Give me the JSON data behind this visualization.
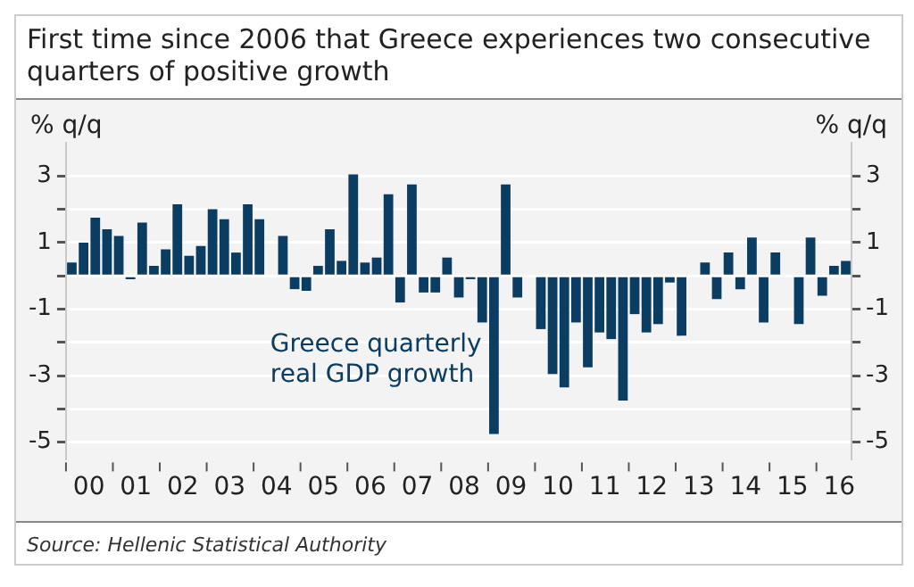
{
  "chart_data": {
    "type": "bar",
    "title": "First time since 2006 that Greece experiences two consecutive quarters of positive growth",
    "ylabel": "% q/q",
    "y2label": "% q/q",
    "categories": [
      null,
      "00",
      null,
      null,
      null,
      "01",
      null,
      null,
      null,
      "02",
      null,
      null,
      null,
      "03",
      null,
      null,
      null,
      "04",
      null,
      null,
      null,
      "05",
      null,
      null,
      null,
      "06",
      null,
      null,
      null,
      "07",
      null,
      null,
      null,
      "08",
      null,
      null,
      null,
      "09",
      null,
      null,
      null,
      "10",
      null,
      null,
      null,
      "11",
      null,
      null,
      null,
      "12",
      null,
      null,
      null,
      "13",
      null,
      null,
      null,
      "14",
      null,
      null,
      null,
      "15",
      null,
      null,
      null,
      "16",
      null
    ],
    "series": [
      {
        "name": "Greece quarterly real GDP growth",
        "color": "#0b3d63",
        "values": [
          0.4,
          1.0,
          1.75,
          1.4,
          1.2,
          -0.1,
          1.6,
          0.3,
          0.8,
          2.15,
          0.6,
          0.9,
          2.0,
          1.7,
          0.7,
          2.15,
          1.7,
          0,
          1.2,
          -0.4,
          -0.45,
          0.3,
          1.4,
          0.45,
          3.05,
          0.4,
          0.55,
          2.45,
          -0.8,
          2.75,
          -0.5,
          -0.5,
          0.55,
          -0.65,
          -0.1,
          -1.4,
          -4.75,
          2.75,
          -0.65,
          0,
          -1.6,
          -2.95,
          -3.35,
          -1.4,
          -2.75,
          -1.7,
          -1.9,
          -3.75,
          -1.15,
          -1.7,
          -1.45,
          -0.2,
          -1.8,
          0,
          0.4,
          -0.7,
          0.7,
          -0.4,
          1.15,
          -1.4,
          0.7,
          0,
          -1.45,
          1.15,
          -0.6,
          0.3,
          0.45
        ]
      }
    ],
    "ylim": [
      -5.5,
      4
    ],
    "yticks": [
      3,
      {
        "value": 2,
        "label": null
      },
      1,
      {
        "value": 0,
        "label": null
      },
      -1,
      {
        "value": -2,
        "label": null
      },
      -3,
      {
        "value": -4,
        "label": null
      },
      -5
    ],
    "y2lim": [
      -5.5,
      4
    ],
    "y2ticks": [
      3,
      {
        "value": 2,
        "label": null
      },
      1,
      {
        "value": 0,
        "label": null
      },
      -1,
      {
        "value": -2,
        "label": null
      },
      -3,
      {
        "value": -4,
        "label": null
      },
      -5
    ],
    "grid": "y",
    "legend": false,
    "annotations": [
      "Source: Hellenic Statistical Authority"
    ]
  }
}
